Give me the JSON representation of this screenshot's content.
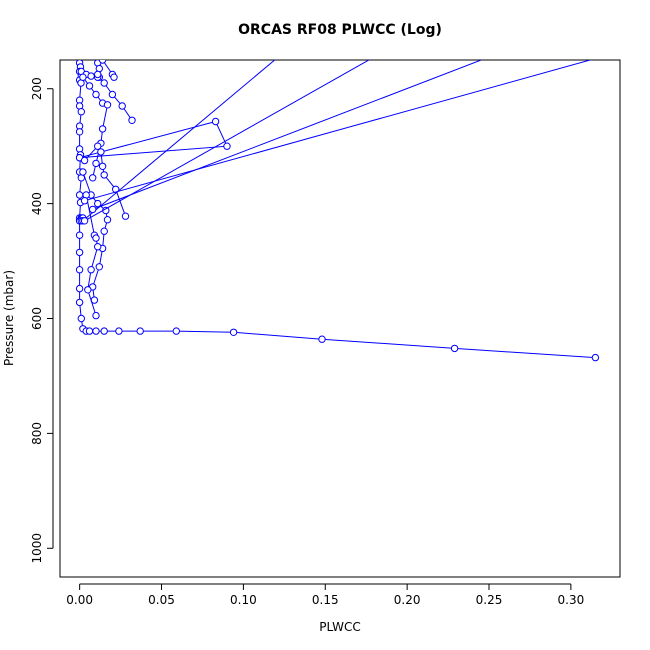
{
  "chart_data": {
    "type": "line",
    "title": "ORCAS RF08 PLWCC (Log)",
    "xlabel": "PLWCC",
    "ylabel": "Pressure (mbar)",
    "xlim": [
      -0.012,
      0.33
    ],
    "ylim": [
      1050,
      150
    ],
    "y_reversed": true,
    "x_ticks": [
      "0.00",
      "0.05",
      "0.10",
      "0.15",
      "0.20",
      "0.25",
      "0.30"
    ],
    "x_tick_values": [
      0,
      0.05,
      0.1,
      0.15,
      0.2,
      0.25,
      0.3
    ],
    "y_ticks": [
      "200",
      "400",
      "600",
      "800",
      "1000"
    ],
    "y_tick_values": [
      200,
      400,
      600,
      800,
      1000
    ],
    "grid": false,
    "series_color": "#0000ff",
    "marker": "open-circle",
    "series": [
      {
        "x": [
          0,
          0.0005,
          0,
          0.001,
          0,
          0.0008,
          0,
          0,
          0.001,
          0,
          0,
          0,
          0.0005,
          0,
          0.001,
          0,
          0.0005,
          0,
          0,
          0,
          0,
          0,
          0,
          0,
          0.001,
          0.002,
          0.004,
          0.006,
          0.01,
          0.015,
          0.024,
          0.037,
          0.059,
          0.094,
          0.148,
          0.229,
          0.315
        ],
        "y": [
          155,
          162,
          170,
          178,
          185,
          190,
          220,
          230,
          240,
          265,
          275,
          305,
          315,
          345,
          355,
          385,
          398,
          425,
          430,
          455,
          485,
          515,
          548,
          572,
          600,
          618,
          622,
          622,
          622,
          622,
          622,
          622,
          622,
          624,
          636,
          652,
          668
        ]
      },
      {
        "x": [
          0.001,
          0.004,
          0.007,
          0.012,
          0.015,
          0.02,
          0.026,
          0.032
        ],
        "y": [
          170,
          175,
          178,
          180,
          190,
          210,
          230,
          255
        ]
      },
      {
        "x": [
          0.002,
          0.006,
          0.01,
          0.014,
          0.017,
          0.014,
          0.013,
          0.01,
          0.008
        ],
        "y": [
          180,
          195,
          210,
          225,
          228,
          270,
          295,
          330,
          355
        ]
      },
      {
        "x": [
          0,
          0.083,
          0.09,
          0,
          0.003,
          0.011,
          0.013,
          0.014,
          0.015,
          0.022,
          0.028
        ],
        "y": [
          320,
          257,
          300,
          320,
          325,
          300,
          310,
          335,
          350,
          375,
          422
        ]
      },
      {
        "x": [
          0.002,
          0.007,
          0.011,
          0.016,
          0.017,
          0.015,
          0.014,
          0.012,
          0.008,
          0.009
        ],
        "y": [
          345,
          385,
          400,
          412,
          428,
          448,
          478,
          510,
          545,
          568
        ]
      },
      {
        "x": [
          0.004,
          0.009,
          0.01,
          0.011,
          0.007,
          0.005,
          0.01
        ],
        "y": [
          385,
          455,
          460,
          475,
          515,
          550,
          595
        ]
      },
      {
        "x": [
          0.002,
          0.012,
          0.011,
          0.012,
          0.011,
          0.011
        ],
        "y": [
          120,
          150,
          155,
          165,
          180,
          175
        ]
      },
      {
        "x": [
          0.014,
          0.02,
          0.021
        ],
        "y": [
          150,
          175,
          180
        ]
      },
      {
        "x": [
          0.001,
          0.002,
          0.0,
          0.001,
          0.002,
          0.001
        ],
        "y": [
          425,
          428,
          430,
          427,
          425,
          430
        ]
      },
      {
        "x": [
          0.002,
          0.14
        ],
        "y": [
          430,
          100
        ]
      },
      {
        "x": [
          0.003,
          0.22
        ],
        "y": [
          430,
          80
        ]
      },
      {
        "x": [
          0.008,
          0.3
        ],
        "y": [
          410,
          90
        ]
      },
      {
        "x": [
          0.003,
          0.4
        ],
        "y": [
          395,
          80
        ]
      }
    ]
  }
}
